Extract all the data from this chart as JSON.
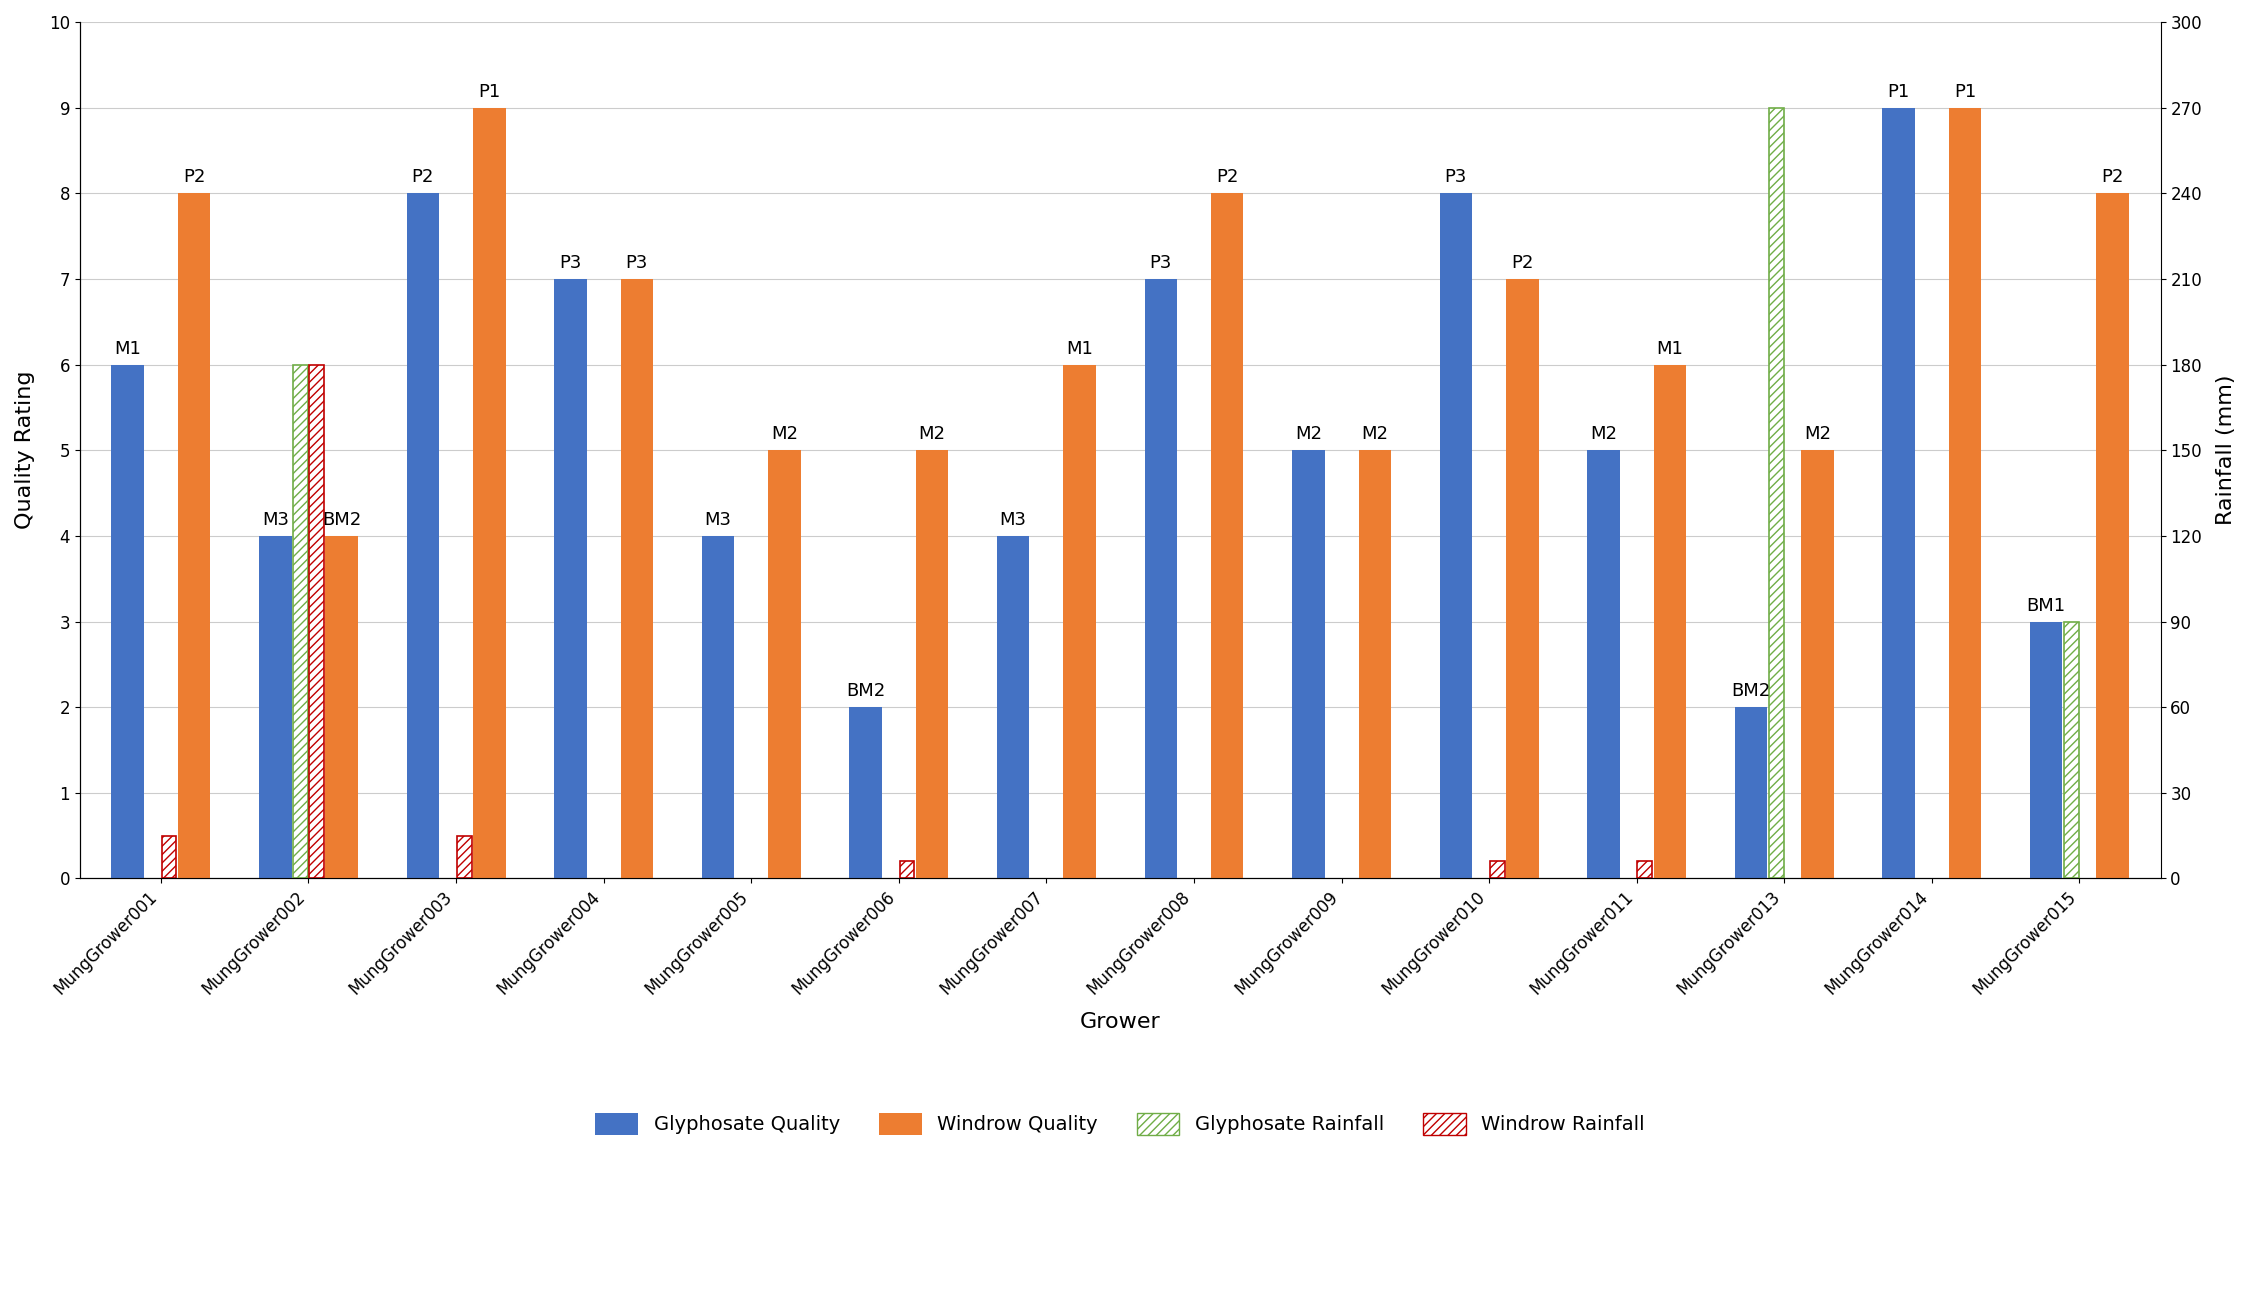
{
  "growers": [
    "MungGrower001",
    "MungGrower002",
    "MungGrower003",
    "MungGrower004",
    "MungGrower005",
    "MungGrower006",
    "MungGrower007",
    "MungGrower008",
    "MungGrower009",
    "MungGrower010",
    "MungGrower011",
    "MungGrower013",
    "MungGrower014",
    "MungGrower015"
  ],
  "glyph_quality": [
    6,
    4,
    8,
    7,
    4,
    2,
    4,
    7,
    5,
    8,
    5,
    2,
    9,
    3
  ],
  "windrow_quality": [
    8,
    4,
    9,
    7,
    5,
    5,
    6,
    8,
    5,
    7,
    6,
    5,
    9,
    8
  ],
  "glyph_rainfall_scaled": [
    null,
    6,
    null,
    null,
    null,
    null,
    null,
    null,
    null,
    null,
    null,
    9,
    null,
    3
  ],
  "windrow_rainfall_scaled": [
    0.5,
    6,
    0.5,
    null,
    null,
    0.2,
    null,
    null,
    null,
    0.2,
    0.2,
    null,
    null,
    null
  ],
  "glyph_quality_labels": [
    "M1",
    "M3",
    "P2",
    "P3",
    "M3",
    "BM2",
    "M3",
    "P3",
    "M2",
    "P3",
    "M2",
    "BM2",
    "P1",
    "BM1"
  ],
  "windrow_quality_labels": [
    "P2",
    "BM2",
    "P1",
    "P3",
    "M2",
    "M2",
    "M1",
    "P2",
    "M2",
    "P2",
    "M1",
    "M2",
    "P1",
    "P2"
  ],
  "glyph_color": "#4472C4",
  "windrow_color": "#ED7D31",
  "glyph_rain_color": "#70AD47",
  "windrow_rain_color": "#C00000",
  "xlabel": "Grower",
  "ylabel_left": "Quality Rating",
  "ylabel_right": "Rainfall (mm)",
  "ylim_left": [
    0,
    10
  ],
  "ylim_right": [
    0,
    300
  ],
  "yticks_left": [
    0,
    1,
    2,
    3,
    4,
    5,
    6,
    7,
    8,
    9,
    10
  ],
  "yticks_right": [
    0,
    30,
    60,
    90,
    120,
    150,
    180,
    210,
    240,
    270,
    300
  ],
  "background_color": "#FFFFFF",
  "bw": 0.22,
  "rw": 0.1,
  "label_fontsize": 13,
  "axis_fontsize": 16,
  "tick_fontsize": 12
}
